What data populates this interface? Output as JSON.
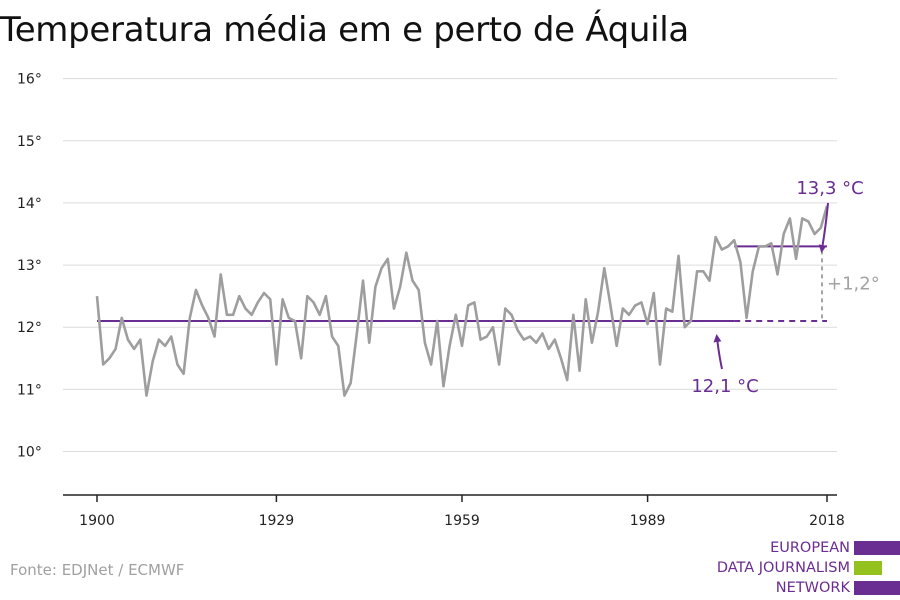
{
  "title": "Temperatura média em e perto de Áquila",
  "source": "Fonte: EDJNet / ECMWF",
  "logo": {
    "lines": [
      "EUROPEAN",
      "DATA JOURNALISM",
      "NETWORK"
    ],
    "colors": [
      "#6a2d91",
      "#95c11f",
      "#6a2d91"
    ]
  },
  "colors": {
    "series": "#9e9e9e",
    "accent": "#6a2d91",
    "diff": "#a3a3a3",
    "grid": "#dcdcdc",
    "axis": "#222222"
  },
  "chart_data": {
    "type": "line",
    "title": "Temperatura média em e perto de Áquila",
    "xlabel": "",
    "ylabel": "",
    "xlim": [
      1900,
      2018
    ],
    "ylim": [
      9.3,
      16.3
    ],
    "x_ticks": [
      1900,
      1929,
      1959,
      1989,
      2018
    ],
    "y_ticks": [
      {
        "value": 10,
        "label": "10°"
      },
      {
        "value": 11,
        "label": "11°"
      },
      {
        "value": 12,
        "label": "12°"
      },
      {
        "value": 13,
        "label": "13°"
      },
      {
        "value": 14,
        "label": "14°"
      },
      {
        "value": 15,
        "label": "15°"
      },
      {
        "value": 16,
        "label": "16°"
      }
    ],
    "grid": true,
    "series": [
      {
        "x_start": 1900,
        "values": [
          12.5,
          11.4,
          11.5,
          11.65,
          12.15,
          11.8,
          11.65,
          11.8,
          10.9,
          11.45,
          11.8,
          11.7,
          11.85,
          11.4,
          11.25,
          12.15,
          12.6,
          12.35,
          12.15,
          11.85,
          12.85,
          12.2,
          12.2,
          12.5,
          12.3,
          12.2,
          12.4,
          12.55,
          12.45,
          11.4,
          12.45,
          12.15,
          12.1,
          11.5,
          12.5,
          12.4,
          12.2,
          12.5,
          11.85,
          11.7,
          10.9,
          11.1,
          11.9,
          12.75,
          11.75,
          12.65,
          12.95,
          13.1,
          12.3,
          12.65,
          13.2,
          12.75,
          12.6,
          11.75,
          11.4,
          12.1,
          11.05,
          11.7,
          12.2,
          11.7,
          12.35,
          12.4,
          11.8,
          11.85,
          12.0,
          11.4,
          12.3,
          12.2,
          11.95,
          11.8,
          11.85,
          11.75,
          11.9,
          11.65,
          11.8,
          11.5,
          11.15,
          12.2,
          11.3,
          12.45,
          11.75,
          12.25,
          12.95,
          12.35,
          11.7,
          12.3,
          12.2,
          12.35,
          12.4,
          12.05,
          12.55,
          11.4,
          12.3,
          12.25,
          13.15,
          12.0,
          12.1,
          12.9,
          12.9,
          12.75,
          13.45,
          13.25,
          13.3,
          13.4,
          13.05,
          12.15,
          12.9,
          13.3,
          13.3,
          13.35,
          12.85,
          13.5,
          13.75,
          13.1,
          13.75,
          13.7,
          13.5,
          13.6,
          13.95
        ]
      }
    ],
    "baselines": [
      {
        "value": 12.1,
        "x_from": 1900,
        "x_to": 2018,
        "dashed_from": 2003,
        "label": "12,1 °C"
      },
      {
        "value": 13.3,
        "x_from": 2003,
        "x_to": 2018,
        "label": "13,3 °C"
      }
    ],
    "difference": {
      "label": "+1,2°",
      "from": 12.1,
      "to": 13.3
    }
  }
}
